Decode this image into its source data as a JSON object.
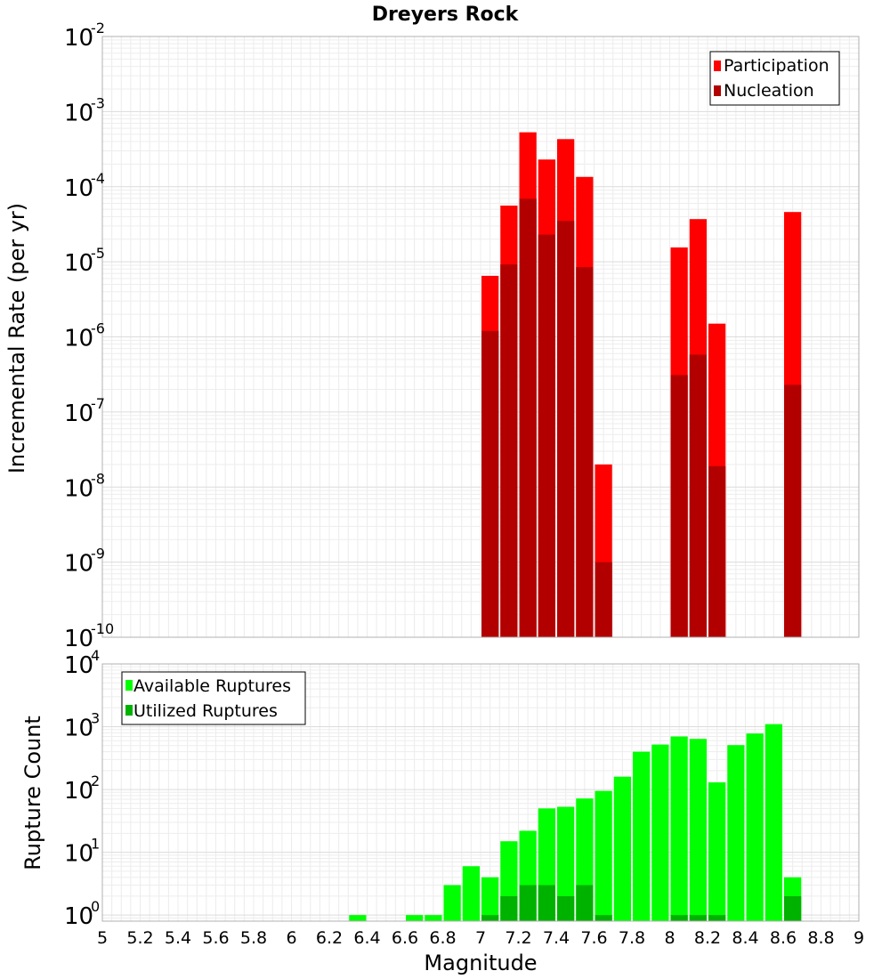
{
  "chart_data": [
    {
      "type": "bar",
      "title": "Dreyers Rock",
      "xlabel": "",
      "ylabel": "Incremental Rate (per yr)",
      "yscale": "log",
      "ylim": [
        1e-10,
        0.01
      ],
      "xlim": [
        5,
        9
      ],
      "ytick_exponents": [
        "-10",
        "-9",
        "-8",
        "-7",
        "-6",
        "-5",
        "-4",
        "-3",
        "-2"
      ],
      "legend_position": "top-right",
      "grid": true,
      "series": [
        {
          "name": "Participation",
          "color": "#ff0000",
          "x": [
            7.05,
            7.15,
            7.25,
            7.35,
            7.45,
            7.55,
            7.65,
            8.05,
            8.15,
            8.25,
            8.65
          ],
          "values": [
            6.5e-06,
            5.6e-05,
            0.00053,
            0.00023,
            0.00043,
            0.000135,
            2e-08,
            1.55e-05,
            3.7e-05,
            1.5e-06,
            4.6e-05
          ]
        },
        {
          "name": "Nucleation",
          "color": "#b20000",
          "x": [
            7.05,
            7.15,
            7.25,
            7.35,
            7.45,
            7.55,
            7.65,
            8.05,
            8.15,
            8.25,
            8.65
          ],
          "values": [
            1.2e-06,
            9.2e-06,
            6.9e-05,
            2.3e-05,
            3.5e-05,
            8.5e-06,
            1e-09,
            3.1e-07,
            5.8e-07,
            1.9e-08,
            2.3e-07
          ]
        }
      ]
    },
    {
      "type": "bar",
      "title": "",
      "xlabel": "Magnitude",
      "ylabel": "Rupture Count",
      "yscale": "log",
      "ylim": [
        0.8,
        10000
      ],
      "xlim": [
        5,
        9
      ],
      "ytick_exponents": [
        "0",
        "1",
        "2",
        "3",
        "4"
      ],
      "xticks": [
        "5",
        "5.2",
        "5.4",
        "5.6",
        "5.8",
        "6",
        "6.2",
        "6.4",
        "6.6",
        "6.8",
        "7",
        "7.2",
        "7.4",
        "7.6",
        "7.8",
        "8",
        "8.2",
        "8.4",
        "8.6",
        "8.8",
        "9"
      ],
      "legend_position": "top-left",
      "grid": true,
      "series": [
        {
          "name": "Available Ruptures",
          "color": "#00ff00",
          "x": [
            6.35,
            6.65,
            6.75,
            6.85,
            6.95,
            7.05,
            7.15,
            7.25,
            7.35,
            7.45,
            7.55,
            7.65,
            7.75,
            7.85,
            7.95,
            8.05,
            8.15,
            8.25,
            8.35,
            8.45,
            8.55,
            8.65
          ],
          "values": [
            1,
            1,
            1,
            3,
            6,
            4,
            15,
            22,
            50,
            53,
            72,
            95,
            160,
            400,
            520,
            700,
            640,
            130,
            510,
            780,
            1100,
            4
          ]
        },
        {
          "name": "Utilized Ruptures",
          "color": "#00b200",
          "x": [
            7.05,
            7.15,
            7.25,
            7.35,
            7.45,
            7.55,
            7.65,
            8.05,
            8.15,
            8.25,
            8.65
          ],
          "values": [
            1,
            2,
            3,
            3,
            2,
            3,
            1,
            1,
            1,
            1,
            2
          ]
        }
      ]
    }
  ]
}
